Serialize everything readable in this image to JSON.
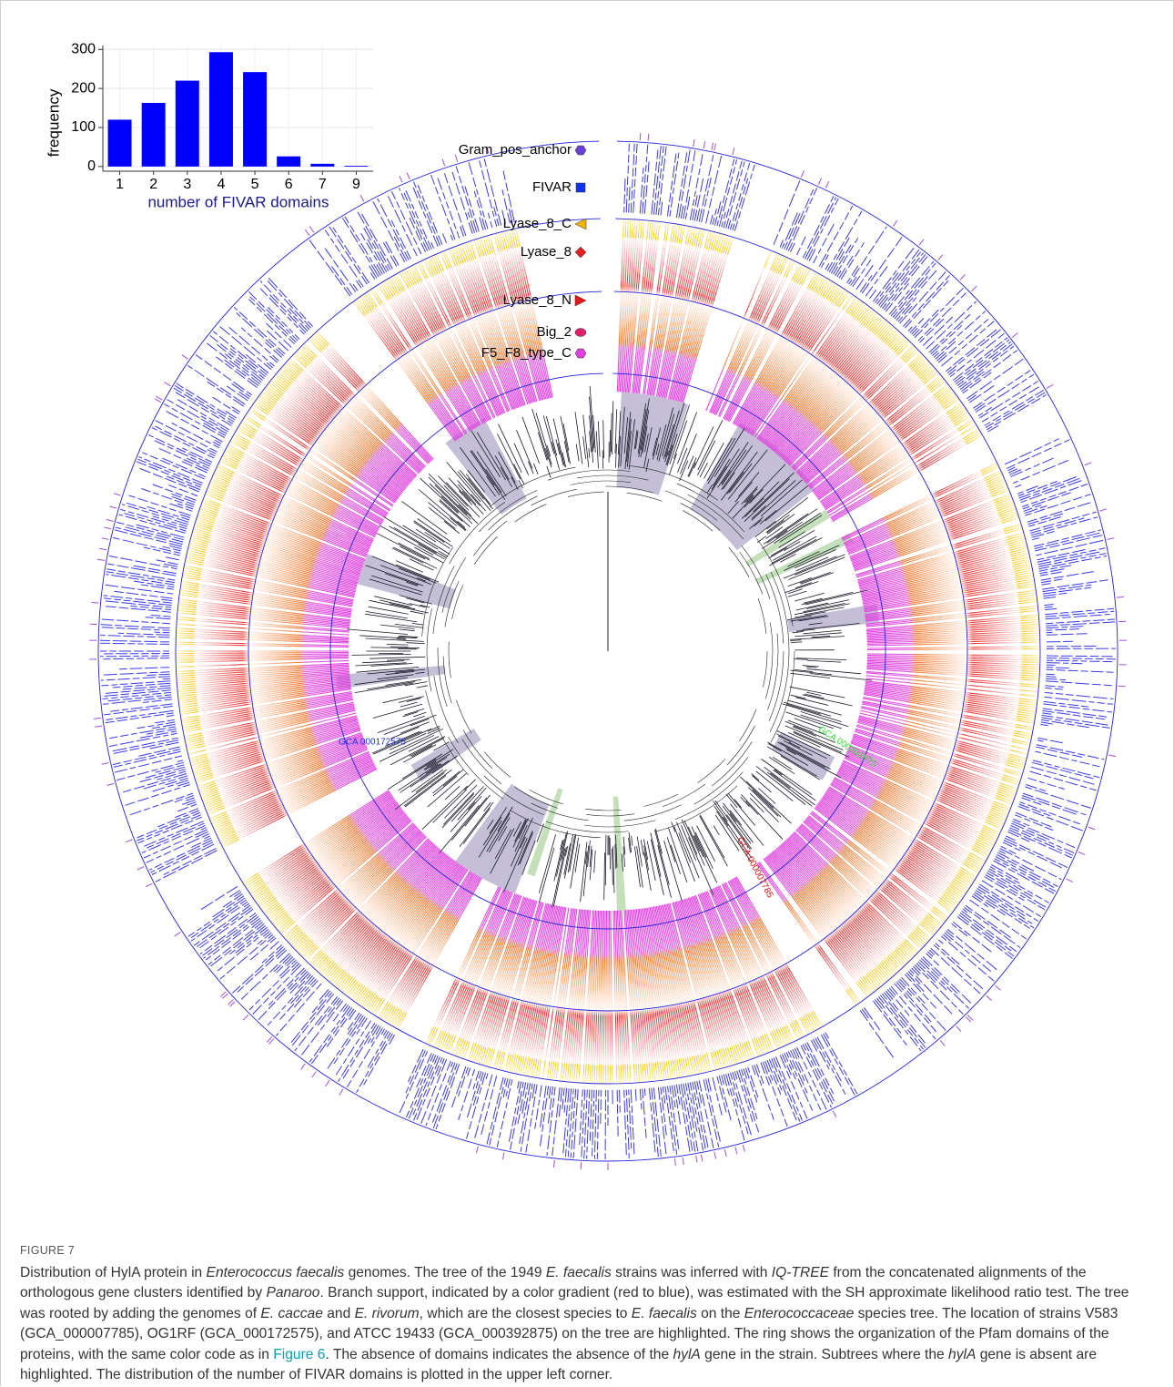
{
  "chart_data": {
    "type": "bar",
    "xlabel": "number of FIVAR domains",
    "ylabel": "frequency",
    "categories": [
      "1",
      "2",
      "3",
      "4",
      "5",
      "6",
      "7",
      "9"
    ],
    "values": [
      120,
      163,
      220,
      293,
      242,
      26,
      7,
      2
    ],
    "color": "#0000ff",
    "ylim": [
      -12,
      310
    ],
    "yticks": [
      0,
      100,
      200,
      300
    ],
    "grid": true
  },
  "legend": [
    {
      "label": "Gram_pos_anchor",
      "color": "#6a3fd8",
      "shape": "hexagon"
    },
    {
      "label": "FIVAR",
      "color": "#1133ee",
      "shape": "square"
    },
    {
      "label": "Lyase_8_C",
      "color": "#f0b400",
      "shape": "triangle-left"
    },
    {
      "label": "Lyase_8",
      "color": "#e02020",
      "shape": "diamond"
    },
    {
      "label": "Lyase_8_N",
      "color": "#e01818",
      "shape": "triangle-right"
    },
    {
      "label": "Big_2",
      "color": "#e0206a",
      "shape": "ellipse"
    },
    {
      "label": "F5_F8_type_C",
      "color": "#e040e0",
      "shape": "hexagon"
    }
  ],
  "strain_labels": [
    {
      "text": "GCA 000172575",
      "color": "#2030e0"
    },
    {
      "text": "GCA 000392875",
      "color": "#30e030"
    },
    {
      "text": "GCA 000007785",
      "color": "#e01010"
    }
  ],
  "figure_label": "FIGURE 7",
  "caption": [
    "Distribution of HylA protein in ",
    "Enterococcus faecalis",
    " genomes. The tree of the 1949 ",
    "E. faecalis",
    " strains was inferred with ",
    "IQ-TREE",
    " from the concatenated alignments of the orthologous gene clusters identified by ",
    "Panaroo",
    ". Branch support, indicated by a color gradient (red to blue), was estimated with the SH approximate likelihood ratio test. The tree was rooted by adding the genomes of ",
    "E. caccae",
    " and ",
    "E. rivorum",
    ", which are the closest species to ",
    "E. faecalis",
    " on the ",
    "Enterococcaceae",
    " species tree. The location of strains V583 (GCA_000007785), OG1RF (GCA_000172575), and ATCC 19433 (GCA_000392875) on the tree are highlighted. The ring shows the organization of the Pfam domains of the proteins, with the same color code as in ",
    "Figure 6",
    ". The absence of domains indicates the absence of the ",
    "hylA",
    " gene in the strain. Subtrees where the ",
    "hylA",
    " gene is absent are highlighted. The distribution of the number of FIVAR domains is plotted in the upper left corner."
  ]
}
